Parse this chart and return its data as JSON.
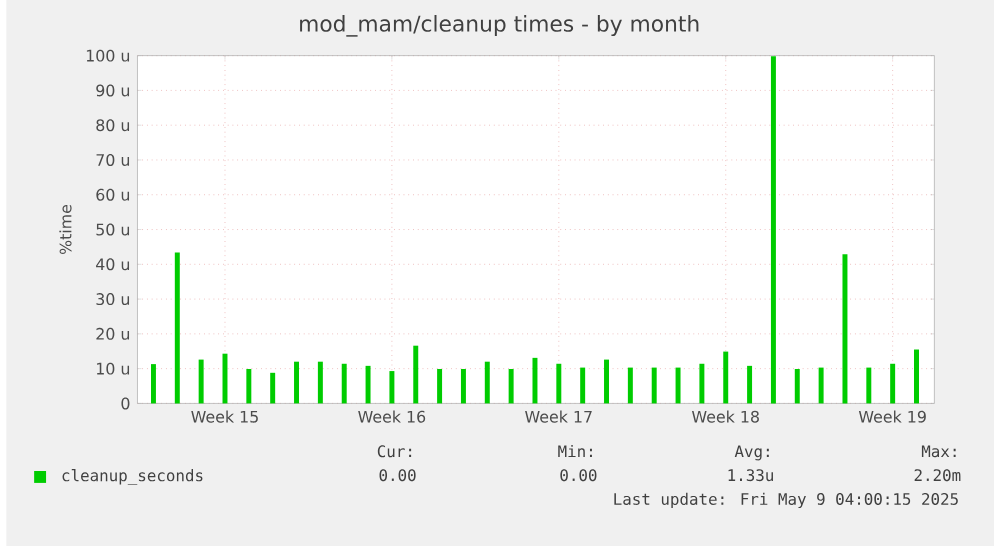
{
  "chart_data": {
    "type": "bar",
    "title": "mod_mam/cleanup times - by month",
    "ylabel": "%time",
    "categories": [
      null,
      null,
      null,
      "Week 15",
      null,
      null,
      null,
      null,
      null,
      null,
      "Week 16",
      null,
      null,
      null,
      null,
      null,
      null,
      "Week 17",
      null,
      null,
      null,
      null,
      null,
      null,
      "Week 18",
      null,
      null,
      null,
      null,
      null,
      null,
      "Week 19",
      null
    ],
    "ylim": [
      0,
      100
    ],
    "yticks": [
      0,
      {
        "value": 10,
        "label": "10 u"
      },
      {
        "value": 20,
        "label": "20 u"
      },
      {
        "value": 30,
        "label": "30 u"
      },
      {
        "value": 40,
        "label": "40 u"
      },
      {
        "value": 50,
        "label": "50 u"
      },
      {
        "value": 60,
        "label": "60 u"
      },
      {
        "value": 70,
        "label": "70 u"
      },
      {
        "value": 80,
        "label": "80 u"
      },
      {
        "value": 90,
        "label": "90 u"
      },
      {
        "value": 100,
        "label": "100 u"
      }
    ],
    "grid": true,
    "legend": "bottom",
    "series": [
      {
        "name": "cleanup_seconds",
        "color": "#00cc00",
        "values": [
          11.3,
          43.4,
          12.6,
          14.3,
          9.9,
          8.8,
          12,
          12,
          11.4,
          10.8,
          9.3,
          16.6,
          9.9,
          9.9,
          12,
          9.9,
          13.1,
          11.4,
          10.3,
          12.6,
          10.3,
          10.3,
          10.3,
          11.4,
          14.9,
          10.8,
          99.8,
          9.9,
          10.3,
          42.9,
          10.3,
          11.4,
          15.5
        ]
      }
    ],
    "annotations": [
      "Cur:",
      "Min:",
      "Avg:",
      "Max:",
      "0.00",
      "0.00",
      "1.33u",
      "2.20m",
      "Last update: Fri May  9 04:00:15 2025"
    ]
  }
}
